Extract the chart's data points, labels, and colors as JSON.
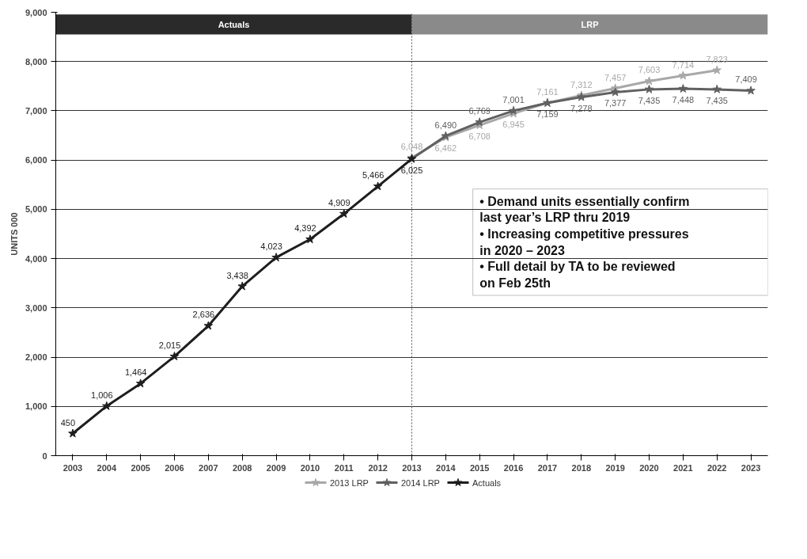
{
  "chart_data": {
    "type": "line",
    "ylabel": "UNITS 000",
    "x": [
      2003,
      2004,
      2005,
      2006,
      2007,
      2008,
      2009,
      2010,
      2011,
      2012,
      2013,
      2014,
      2015,
      2016,
      2017,
      2018,
      2019,
      2020,
      2021,
      2022,
      2023
    ],
    "xlim": [
      2002.5,
      2023.5
    ],
    "xticks": [
      2003,
      2004,
      2005,
      2006,
      2007,
      2008,
      2009,
      2010,
      2011,
      2012,
      2013,
      2014,
      2015,
      2016,
      2017,
      2018,
      2019,
      2020,
      2021,
      2022,
      2023
    ],
    "ylim": [
      0,
      9000
    ],
    "yticks": [
      0,
      {
        "value": 1000,
        "label": "1,000"
      },
      {
        "value": 2000,
        "label": "2,000"
      },
      {
        "value": 3000,
        "label": "3,000"
      },
      {
        "value": 4000,
        "label": "4,000"
      },
      {
        "value": 5000,
        "label": "5,000"
      },
      {
        "value": 6000,
        "label": "6,000"
      },
      {
        "value": 7000,
        "label": "7,000"
      },
      {
        "value": 8000,
        "label": "8,000"
      },
      {
        "value": 9000,
        "label": "9,000"
      }
    ],
    "series": [
      {
        "name": "2013 LRP",
        "color": "#a8a8a8",
        "values": [
          null,
          null,
          null,
          null,
          null,
          null,
          null,
          null,
          null,
          null,
          6048,
          6462,
          6708,
          6945,
          7161,
          7312,
          7457,
          7603,
          7714,
          7823,
          null
        ],
        "value_labels": [
          null,
          null,
          null,
          null,
          null,
          null,
          null,
          null,
          null,
          null,
          "6,048",
          "6,462",
          "6,708",
          "6,945",
          "7,161",
          "7,312",
          "7,457",
          "7,603",
          "7,714",
          "7,823",
          null
        ]
      },
      {
        "name": "2014 LRP",
        "color": "#606060",
        "values": [
          null,
          null,
          null,
          null,
          null,
          null,
          null,
          null,
          null,
          null,
          6025,
          6490,
          6769,
          7001,
          7159,
          7278,
          7377,
          7435,
          7448,
          7435,
          7409
        ],
        "value_labels": [
          null,
          null,
          null,
          null,
          null,
          null,
          null,
          null,
          null,
          null,
          null,
          "6,490",
          "6,769",
          "7,001",
          "7,159",
          "7,278",
          "7,377",
          "7,435",
          "7,448",
          "7,435",
          "7,409"
        ]
      },
      {
        "name": "Actuals",
        "color": "#1e1e1e",
        "values": [
          450,
          1006,
          1464,
          2015,
          2636,
          3438,
          4023,
          4392,
          4909,
          5466,
          6025,
          null,
          null,
          null,
          null,
          null,
          null,
          null,
          null,
          null,
          null
        ],
        "value_labels": [
          "450",
          "1,006",
          "1,464",
          "2,015",
          "2,636",
          "3,438",
          "4,023",
          "4,392",
          "4,909",
          "5,466",
          "6,025",
          null,
          null,
          null,
          null,
          null,
          null,
          null,
          null,
          null,
          null
        ]
      }
    ],
    "bands": [
      {
        "axis": "x",
        "from": 2002.5,
        "to": 2013,
        "label": "Actuals",
        "color": "#2a2a2a"
      },
      {
        "axis": "x",
        "from": 2013,
        "to": 2023.5,
        "label": "LRP",
        "color": "#8a8a8a"
      }
    ],
    "ref_lines": [
      {
        "axis": "x",
        "value": 2013,
        "line_style": "dotted",
        "color": "#555555"
      }
    ],
    "annotations": [
      "• Demand units essentially confirm last year’s LRP thru 2019",
      "• Increasing competitive pressures in 2020 – 2023",
      "• Full detail by TA to be reviewed on Feb 25th"
    ],
    "grid": "y",
    "legend": "bottom",
    "marker": "star",
    "line_style": "solid"
  }
}
